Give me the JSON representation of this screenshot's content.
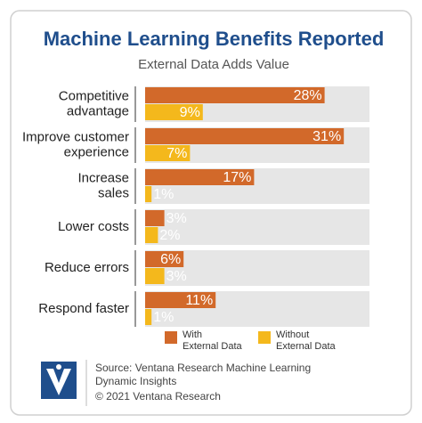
{
  "chart_data": {
    "type": "hbar",
    "title": "Machine Learning Benefits Reported",
    "subtitle": "External Data Adds Value",
    "categories": [
      "Competitive\nadvantage",
      "Improve customer\nexperience",
      "Increase\nsales",
      "Lower costs",
      "Reduce errors",
      "Respond faster"
    ],
    "series": [
      {
        "name": "With\nExternal Data",
        "color": "#d2692a",
        "values": [
          28,
          31,
          17,
          3,
          6,
          11
        ],
        "value_labels": [
          "28%",
          "31%",
          "17%",
          "3%",
          "6%",
          "11%"
        ]
      },
      {
        "name": "Without\nExternal Data",
        "color": "#f4b81c",
        "values": [
          9,
          7,
          1,
          2,
          3,
          1
        ],
        "value_labels": [
          "9%",
          "7%",
          "1%",
          "2%",
          "3%",
          "1%"
        ]
      }
    ],
    "xlim": [
      0,
      35
    ]
  },
  "footer": {
    "source": "Source: Ventana Research Machine Learning\nDynamic Insights",
    "copyright": "© 2021 Ventana Research"
  }
}
